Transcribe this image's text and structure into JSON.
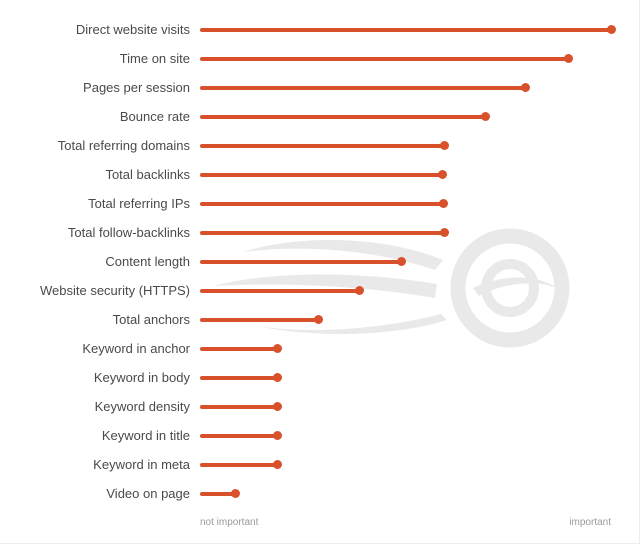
{
  "chart_data": {
    "type": "bar",
    "variant": "horizontal-lollipop",
    "title": "",
    "categories": [
      "Direct website visits",
      "Time on site",
      "Pages per session",
      "Bounce rate",
      "Total referring domains",
      "Total backlinks",
      "Total referring IPs",
      "Total follow-backlinks",
      "Content length",
      "Website security (HTTPS)",
      "Total anchors",
      "Keyword in anchor",
      "Keyword in body",
      "Keyword density",
      "Keyword in title",
      "Keyword in meta",
      "Video on page"
    ],
    "values": [
      1.0,
      0.895,
      0.79,
      0.693,
      0.594,
      0.588,
      0.591,
      0.593,
      0.49,
      0.388,
      0.287,
      0.187,
      0.187,
      0.187,
      0.187,
      0.187,
      0.086
    ],
    "xlim": [
      0,
      1
    ],
    "xlabel": "",
    "ylabel": "",
    "axis_left_label": "not important",
    "axis_right_label": "important",
    "grid": false,
    "legend_position": "none",
    "accent_color": "#d8512a",
    "label_color": "#4a4a4a",
    "axis_label_color": "#9a9a9a",
    "watermark_color": "#e9e9e9",
    "watermark_icon": "semrush-logo"
  }
}
